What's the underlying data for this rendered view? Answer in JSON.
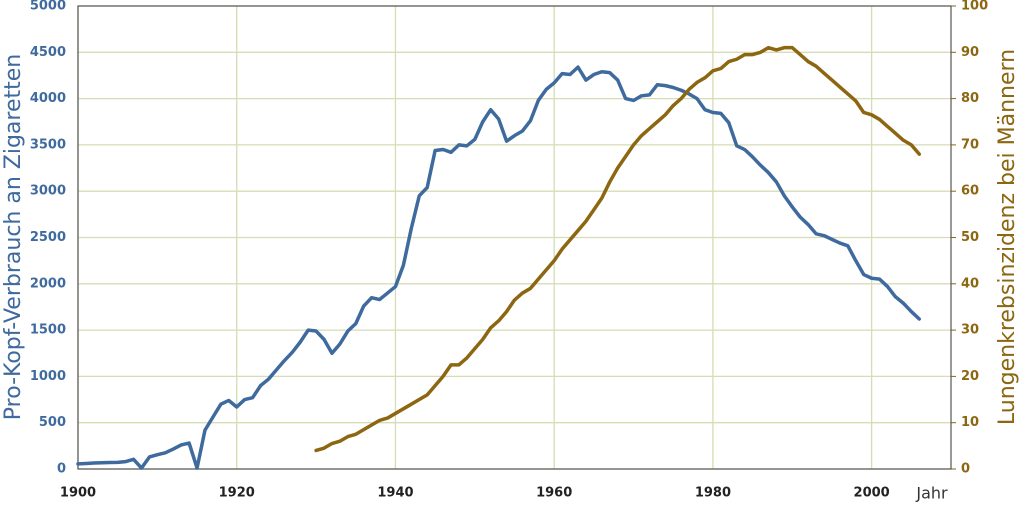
{
  "chart_data": {
    "type": "line",
    "xlabel": "Jahr",
    "ylabel": "Pro-Kopf-Verbrauch an Zigaretten",
    "y2label": "Lungenkrebsinzidenz bei Männern",
    "xlim": [
      1900,
      2010
    ],
    "xticks": [
      1900,
      1920,
      1940,
      1960,
      1980,
      2000
    ],
    "ylim": [
      0,
      5000
    ],
    "yticks": [
      0,
      500,
      1000,
      1500,
      2000,
      2500,
      3000,
      3500,
      4000,
      4500,
      5000
    ],
    "y2lim": [
      0,
      100
    ],
    "y2ticks": [
      0,
      10,
      20,
      30,
      40,
      50,
      60,
      70,
      80,
      90,
      100
    ],
    "grid": true,
    "x": [
      1900,
      1901,
      1902,
      1903,
      1904,
      1905,
      1906,
      1907,
      1908,
      1909,
      1910,
      1911,
      1912,
      1913,
      1914,
      1915,
      1916,
      1917,
      1918,
      1919,
      1920,
      1921,
      1922,
      1923,
      1924,
      1925,
      1926,
      1927,
      1928,
      1929,
      1930,
      1931,
      1932,
      1933,
      1934,
      1935,
      1936,
      1937,
      1938,
      1939,
      1940,
      1941,
      1942,
      1943,
      1944,
      1945,
      1946,
      1947,
      1948,
      1949,
      1950,
      1951,
      1952,
      1953,
      1954,
      1955,
      1956,
      1957,
      1958,
      1959,
      1960,
      1961,
      1962,
      1963,
      1964,
      1965,
      1966,
      1967,
      1968,
      1969,
      1970,
      1971,
      1972,
      1973,
      1974,
      1975,
      1976,
      1977,
      1978,
      1979,
      1980,
      1981,
      1982,
      1983,
      1984,
      1985,
      1986,
      1987,
      1988,
      1989,
      1990,
      1991,
      1992,
      1993,
      1994,
      1995,
      1996,
      1997,
      1998,
      1999,
      2000,
      2001,
      2002,
      2003,
      2004,
      2005,
      2006
    ],
    "series": [
      {
        "color": "#3f6a9e",
        "values": [
          55,
          60,
          65,
          68,
          70,
          72,
          80,
          105,
          10,
          130,
          155,
          175,
          215,
          260,
          280,
          10,
          420,
          560,
          700,
          740,
          670,
          750,
          770,
          900,
          970,
          1070,
          1170,
          1260,
          1370,
          1500,
          1490,
          1400,
          1250,
          1350,
          1490,
          1570,
          1760,
          1850,
          1830,
          1900,
          1970,
          2200,
          2600,
          2950,
          3040,
          3440,
          3450,
          3420,
          3500,
          3490,
          3560,
          3750,
          3880,
          3780,
          3540,
          3600,
          3650,
          3760,
          3980,
          4100,
          4170,
          4270,
          4260,
          4340,
          4200,
          4260,
          4290,
          4280,
          4200,
          4000,
          3980,
          4030,
          4040,
          4150,
          4140,
          4120,
          4090,
          4050,
          4000,
          3880,
          3850,
          3840,
          3740,
          3490,
          3450,
          3370,
          3280,
          3200,
          3100,
          2950,
          2830,
          2720,
          2640,
          2540,
          2520,
          2480,
          2440,
          2410,
          2250,
          2100,
          2060,
          2050,
          1970,
          1860,
          1790,
          1700,
          1620
        ]
      },
      {
        "color": "#8c6610",
        "axis": "y2",
        "values": [
          null,
          null,
          null,
          null,
          null,
          null,
          null,
          null,
          null,
          null,
          null,
          null,
          null,
          null,
          null,
          null,
          null,
          null,
          null,
          null,
          null,
          null,
          null,
          null,
          null,
          null,
          null,
          null,
          null,
          null,
          4,
          4.5,
          5.5,
          6,
          7,
          7.5,
          8.5,
          9.5,
          10.5,
          11,
          12,
          13,
          14,
          15,
          16,
          18,
          20,
          22.5,
          22.5,
          24,
          26,
          28,
          30.5,
          32,
          34,
          36.5,
          38,
          39,
          41,
          43,
          45,
          47.5,
          49.5,
          51.5,
          53.5,
          56,
          58.5,
          62,
          65,
          67.5,
          70,
          72,
          73.5,
          75,
          76.5,
          78.5,
          80,
          82,
          83.5,
          84.5,
          86,
          86.5,
          88,
          88.5,
          89.5,
          89.5,
          90,
          91,
          90.5,
          91,
          91,
          89.5,
          88,
          87,
          85.5,
          84,
          82.5,
          81,
          79.5,
          77,
          76.5,
          75.5,
          74,
          72.5,
          71,
          70,
          68
        ]
      }
    ]
  }
}
